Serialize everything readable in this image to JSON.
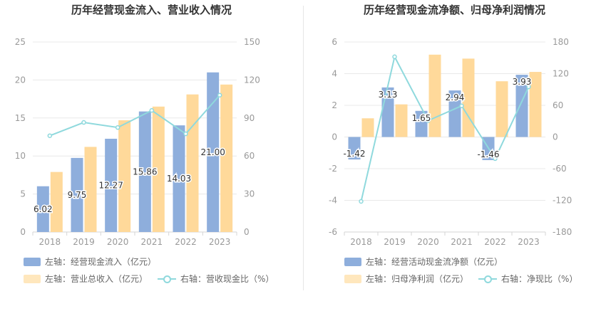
{
  "charts": {
    "left": {
      "title": "历年经营现金流入、营业收入情况",
      "legend": {
        "bar1": "左轴：经营现金流入（亿元）",
        "bar2": "左轴：营业总收入（亿元）",
        "line": "右轴：营收现金比（%）"
      }
    },
    "right": {
      "title": "历年经营现金流净额、归母净利润情况",
      "legend": {
        "bar1": "左轴：经营活动现金流净额（亿元）",
        "bar2": "左轴：归母净利润（亿元）",
        "line": "右轴：净现比（%）"
      }
    }
  },
  "colors": {
    "bar1": "#8eaedc",
    "bar2": "#ffd99a",
    "line": "#8fd9dd",
    "grid": "#e8e8e8",
    "axis_text": "#999999"
  },
  "chart_data": [
    {
      "type": "bar",
      "title": "历年经营现金流入、营业收入情况",
      "categories": [
        "2018",
        "2019",
        "2020",
        "2021",
        "2022",
        "2023"
      ],
      "y_left": {
        "ticks": [
          "0",
          "5",
          "10",
          "15",
          "20",
          "25"
        ],
        "ylim": [
          0,
          25
        ]
      },
      "y_right": {
        "ticks": [
          "0",
          "30",
          "60",
          "90",
          "120",
          "150"
        ],
        "ylim": [
          0,
          150
        ]
      },
      "series": [
        {
          "name": "经营现金流入",
          "axis": "left",
          "type": "bar",
          "values": [
            6.02,
            9.75,
            12.27,
            15.86,
            14.03,
            21.0
          ],
          "labels": [
            "6.02",
            "9.75",
            "12.27",
            "15.86",
            "14.03",
            "21.00"
          ]
        },
        {
          "name": "营业总收入",
          "axis": "left",
          "type": "bar",
          "values": [
            7.9,
            11.2,
            14.7,
            16.5,
            18.1,
            19.4
          ]
        },
        {
          "name": "营收现金比",
          "axis": "right",
          "type": "line",
          "values": [
            76,
            86.5,
            82.5,
            96,
            77.5,
            108
          ]
        }
      ]
    },
    {
      "type": "bar",
      "title": "历年经营现金流净额、归母净利润情况",
      "categories": [
        "2018",
        "2019",
        "2020",
        "2021",
        "2022",
        "2023"
      ],
      "y_left": {
        "ticks": [
          "-6",
          "-4",
          "-2",
          "0",
          "2",
          "4",
          "6"
        ],
        "ylim": [
          -6,
          6
        ]
      },
      "y_right": {
        "ticks": [
          "-180",
          "-120",
          "-60",
          "0",
          "60",
          "120",
          "180"
        ],
        "ylim": [
          -180,
          180
        ]
      },
      "series": [
        {
          "name": "经营活动现金流净额",
          "axis": "left",
          "type": "bar",
          "values": [
            -1.42,
            3.13,
            1.65,
            2.94,
            -1.46,
            3.93
          ],
          "labels": [
            "-1.42",
            "3.13",
            "1.65",
            "2.94",
            "-1.46",
            "3.93"
          ]
        },
        {
          "name": "归母净利润",
          "axis": "left",
          "type": "bar",
          "values": [
            1.18,
            2.06,
            5.2,
            4.95,
            3.52,
            4.11
          ]
        },
        {
          "name": "净现比",
          "axis": "right",
          "type": "line",
          "values": [
            -122,
            152,
            31,
            59,
            -41,
            95
          ]
        }
      ]
    }
  ]
}
